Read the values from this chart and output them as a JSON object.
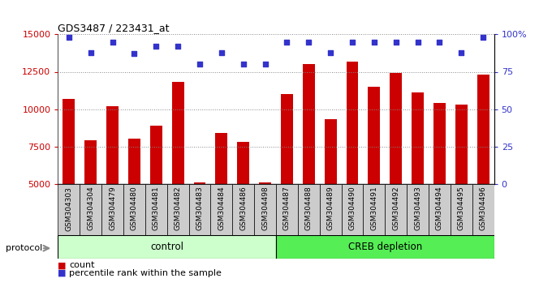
{
  "title": "GDS3487 / 223431_at",
  "samples": [
    "GSM304303",
    "GSM304304",
    "GSM304479",
    "GSM304480",
    "GSM304481",
    "GSM304482",
    "GSM304483",
    "GSM304484",
    "GSM304486",
    "GSM304498",
    "GSM304487",
    "GSM304488",
    "GSM304489",
    "GSM304490",
    "GSM304491",
    "GSM304492",
    "GSM304493",
    "GSM304494",
    "GSM304495",
    "GSM304496"
  ],
  "counts": [
    10700,
    7900,
    10200,
    8000,
    8900,
    11800,
    5100,
    8400,
    7800,
    5100,
    11000,
    13000,
    9300,
    13200,
    11500,
    12400,
    11100,
    10400,
    10300,
    12300
  ],
  "percentile_ranks": [
    98,
    88,
    95,
    87,
    92,
    92,
    80,
    88,
    80,
    80,
    95,
    95,
    88,
    95,
    95,
    95,
    95,
    95,
    88,
    98
  ],
  "control_count": 10,
  "creb_count": 10,
  "ylim_left": [
    5000,
    15000
  ],
  "ylim_right": [
    0,
    100
  ],
  "yticks_left": [
    5000,
    7500,
    10000,
    12500,
    15000
  ],
  "yticks_right": [
    0,
    25,
    50,
    75,
    100
  ],
  "bar_color": "#cc0000",
  "dot_color": "#3333cc",
  "control_color": "#ccffcc",
  "creb_color": "#55ee55",
  "tick_box_color": "#cccccc",
  "grid_color": "#888888",
  "legend_red": "count",
  "legend_blue": "percentile rank within the sample",
  "control_label": "control",
  "creb_label": "CREB depletion",
  "protocol_label": "protocol"
}
